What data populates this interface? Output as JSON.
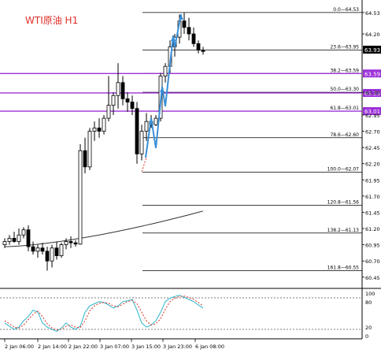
{
  "app": {
    "symbol_title": "WTI原油 H1"
  },
  "colors": {
    "bg": "#ffffff",
    "candle": "#000000",
    "fib_line": "#000000",
    "level_purple": "#9b30d9",
    "arrow_blue": "#3b8fd6",
    "stoch_main": "#2bb5c9",
    "stoch_signal": "#e0302a",
    "ma_line": "#333333",
    "price_tag_bg": "#000000",
    "purple_tag_bg": "#9b30d9"
  },
  "current_price": "63.93",
  "price_axis": [
    "64.53",
    "64.20",
    "63.93",
    "63.59",
    "63.30",
    "63.01",
    "62.95",
    "62.70",
    "62.45",
    "62.20",
    "61.95",
    "61.70",
    "61.45",
    "61.20",
    "60.95",
    "60.70",
    "60.45"
  ],
  "fib_labels": [
    "0.0—64.53",
    "23.6—63.95",
    "38.2—63.59",
    "50.0—63.30",
    "61.8—63.01",
    "78.6—62.60",
    "100.0—62.07",
    "120.8—61.56",
    "138.2—61.13",
    "161.8—60.55"
  ],
  "purple_levels": [
    "63.59",
    "63.29",
    "63.01"
  ],
  "stoch_axis": [
    "100",
    "80",
    "20",
    "0"
  ],
  "time_axis": [
    "2 Jan 06:00",
    "2 Jan 14:00",
    "2 Jan 22:00",
    "3 Jan 07:00",
    "3 Jan 15:00",
    "3 Jan 23:00",
    "6 Jan 08:00"
  ],
  "chart_data": {
    "type": "candlestick",
    "symbol": "WTI原油",
    "timeframe": "H1",
    "ylim": [
      60.35,
      64.65
    ],
    "candles": [
      {
        "o": 60.95,
        "h": 61.05,
        "l": 60.9,
        "c": 61.0
      },
      {
        "o": 61.0,
        "h": 61.1,
        "l": 60.95,
        "c": 61.05
      },
      {
        "o": 61.05,
        "h": 61.15,
        "l": 60.98,
        "c": 61.0
      },
      {
        "o": 61.0,
        "h": 61.2,
        "l": 60.95,
        "c": 61.1
      },
      {
        "o": 61.1,
        "h": 61.22,
        "l": 61.05,
        "c": 61.18
      },
      {
        "o": 61.18,
        "h": 61.25,
        "l": 60.85,
        "c": 60.92
      },
      {
        "o": 60.92,
        "h": 61.0,
        "l": 60.8,
        "c": 60.85
      },
      {
        "o": 60.85,
        "h": 60.95,
        "l": 60.75,
        "c": 60.9
      },
      {
        "o": 60.9,
        "h": 60.98,
        "l": 60.8,
        "c": 60.85
      },
      {
        "o": 60.85,
        "h": 60.92,
        "l": 60.55,
        "c": 60.7
      },
      {
        "o": 60.7,
        "h": 60.95,
        "l": 60.6,
        "c": 60.9
      },
      {
        "o": 60.9,
        "h": 61.0,
        "l": 60.72,
        "c": 60.78
      },
      {
        "o": 60.78,
        "h": 60.98,
        "l": 60.75,
        "c": 60.95
      },
      {
        "o": 60.95,
        "h": 61.05,
        "l": 60.88,
        "c": 61.0
      },
      {
        "o": 61.0,
        "h": 61.08,
        "l": 60.9,
        "c": 60.98
      },
      {
        "o": 60.98,
        "h": 61.02,
        "l": 60.92,
        "c": 60.96
      },
      {
        "o": 60.96,
        "h": 62.5,
        "l": 60.95,
        "c": 62.4
      },
      {
        "o": 62.4,
        "h": 62.6,
        "l": 62.05,
        "c": 62.15
      },
      {
        "o": 62.15,
        "h": 62.75,
        "l": 62.1,
        "c": 62.7
      },
      {
        "o": 62.7,
        "h": 62.85,
        "l": 62.55,
        "c": 62.75
      },
      {
        "o": 62.75,
        "h": 62.9,
        "l": 62.6,
        "c": 62.7
      },
      {
        "o": 62.7,
        "h": 62.95,
        "l": 62.65,
        "c": 62.9
      },
      {
        "o": 62.9,
        "h": 63.55,
        "l": 62.85,
        "c": 63.1
      },
      {
        "o": 63.1,
        "h": 63.3,
        "l": 62.95,
        "c": 63.25
      },
      {
        "o": 63.25,
        "h": 63.75,
        "l": 63.05,
        "c": 63.45
      },
      {
        "o": 63.45,
        "h": 63.55,
        "l": 63.1,
        "c": 63.2
      },
      {
        "o": 63.2,
        "h": 63.3,
        "l": 63.0,
        "c": 63.15
      },
      {
        "o": 63.15,
        "h": 63.25,
        "l": 62.95,
        "c": 63.05
      },
      {
        "o": 63.05,
        "h": 63.15,
        "l": 62.2,
        "c": 62.35
      },
      {
        "o": 62.35,
        "h": 62.8,
        "l": 62.25,
        "c": 62.7
      },
      {
        "o": 62.7,
        "h": 62.98,
        "l": 62.55,
        "c": 62.85
      },
      {
        "o": 62.85,
        "h": 62.95,
        "l": 62.75,
        "c": 62.8
      },
      {
        "o": 62.8,
        "h": 62.95,
        "l": 62.78,
        "c": 62.9
      },
      {
        "o": 62.9,
        "h": 63.6,
        "l": 62.85,
        "c": 63.55
      },
      {
        "o": 63.55,
        "h": 63.75,
        "l": 63.45,
        "c": 63.7
      },
      {
        "o": 63.7,
        "h": 64.1,
        "l": 63.6,
        "c": 64.0
      },
      {
        "o": 64.0,
        "h": 64.2,
        "l": 63.85,
        "c": 64.15
      },
      {
        "o": 64.15,
        "h": 64.5,
        "l": 64.05,
        "c": 64.4
      },
      {
        "o": 64.4,
        "h": 64.53,
        "l": 64.2,
        "c": 64.3
      },
      {
        "o": 64.3,
        "h": 64.45,
        "l": 64.1,
        "c": 64.2
      },
      {
        "o": 64.2,
        "h": 64.3,
        "l": 64.0,
        "c": 64.05
      },
      {
        "o": 64.05,
        "h": 64.1,
        "l": 63.9,
        "c": 63.95
      },
      {
        "o": 63.95,
        "h": 64.0,
        "l": 63.88,
        "c": 63.93
      }
    ],
    "stochastic": {
      "main": [
        30,
        22,
        15,
        20,
        35,
        45,
        60,
        55,
        30,
        20,
        15,
        10,
        18,
        30,
        20,
        15,
        22,
        55,
        70,
        75,
        80,
        78,
        72,
        65,
        70,
        80,
        82,
        85,
        60,
        30,
        20,
        25,
        35,
        55,
        80,
        88,
        92,
        95,
        90,
        85,
        80,
        72,
        65
      ],
      "signal": [
        35,
        28,
        20,
        18,
        25,
        38,
        50,
        58,
        45,
        28,
        18,
        13,
        15,
        22,
        25,
        20,
        19,
        35,
        58,
        70,
        76,
        78,
        76,
        70,
        68,
        74,
        80,
        83,
        75,
        55,
        35,
        25,
        28,
        40,
        62,
        80,
        88,
        92,
        93,
        90,
        85,
        78,
        70
      ]
    }
  }
}
